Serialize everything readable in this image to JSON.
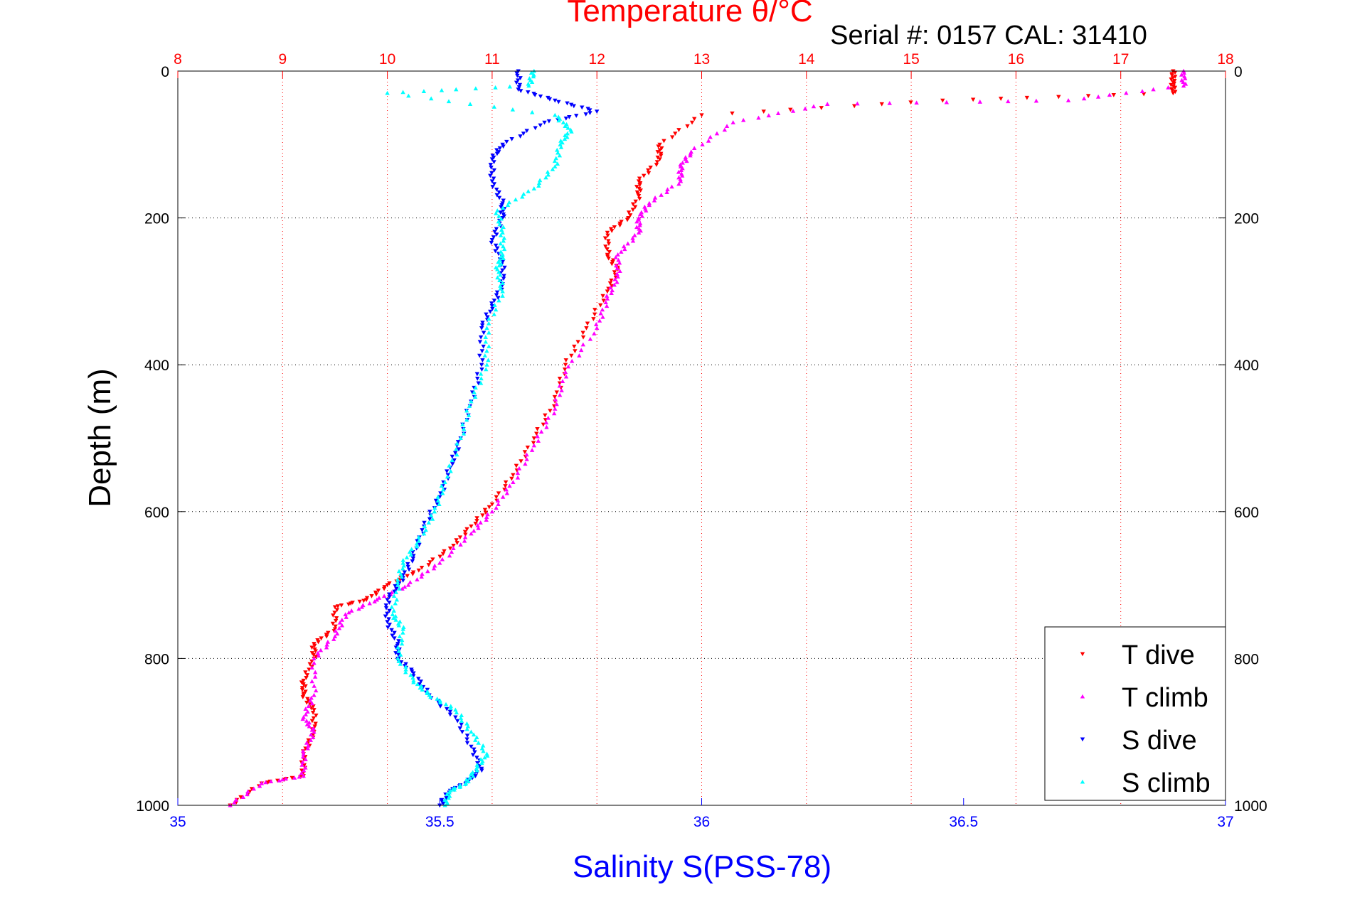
{
  "chart_data": {
    "type": "scatter",
    "title": "Temperature θ/°C",
    "subtitle": "Serial #: 0157  CAL: 31410",
    "xlabel": "Salinity S(PSS-78)",
    "ylabel": "Depth (m)",
    "x_bottom": {
      "lim": [
        35,
        37
      ],
      "ticks": [
        "35",
        "35.5",
        "36",
        "36.5",
        "37"
      ],
      "tick_values": [
        35,
        35.5,
        36,
        36.5,
        37
      ],
      "color": "#0000ff"
    },
    "x_top": {
      "lim": [
        8,
        18
      ],
      "ticks": [
        "8",
        "9",
        "10",
        "11",
        "12",
        "13",
        "14",
        "15",
        "16",
        "17",
        "18"
      ],
      "tick_values": [
        8,
        9,
        10,
        11,
        12,
        13,
        14,
        15,
        16,
        17,
        18
      ],
      "color": "#ff0000"
    },
    "y": {
      "lim": [
        0,
        1000
      ],
      "reversed": true,
      "ticks": [
        "0",
        "200",
        "400",
        "600",
        "800",
        "1000"
      ],
      "tick_values": [
        0,
        200,
        400,
        600,
        800,
        1000
      ]
    },
    "grid": true,
    "legend_position": "bottom-right",
    "series": [
      {
        "name": "T dive",
        "axis": "top",
        "color": "#ff0000",
        "marker": "down-triangle",
        "points": [
          [
            17.5,
            0
          ],
          [
            17.5,
            15
          ],
          [
            17.5,
            30
          ],
          [
            15.3,
            40
          ],
          [
            13.0,
            60
          ],
          [
            12.6,
            100
          ],
          [
            12.6,
            120
          ],
          [
            12.4,
            150
          ],
          [
            12.4,
            170
          ],
          [
            12.3,
            200
          ],
          [
            12.1,
            220
          ],
          [
            12.1,
            250
          ],
          [
            12.2,
            270
          ],
          [
            12.1,
            300
          ],
          [
            11.9,
            350
          ],
          [
            11.7,
            400
          ],
          [
            11.6,
            450
          ],
          [
            11.4,
            500
          ],
          [
            11.2,
            550
          ],
          [
            11.0,
            590
          ],
          [
            10.8,
            620
          ],
          [
            10.6,
            650
          ],
          [
            10.3,
            680
          ],
          [
            10.0,
            700
          ],
          [
            9.8,
            720
          ],
          [
            9.5,
            730
          ],
          [
            9.5,
            760
          ],
          [
            9.3,
            780
          ],
          [
            9.3,
            800
          ],
          [
            9.2,
            830
          ],
          [
            9.2,
            850
          ],
          [
            9.3,
            870
          ],
          [
            9.3,
            900
          ],
          [
            9.2,
            930
          ],
          [
            9.2,
            960
          ],
          [
            8.8,
            970
          ],
          [
            8.5,
            1000
          ]
        ]
      },
      {
        "name": "T climb",
        "axis": "top",
        "color": "#ff00ff",
        "marker": "up-triangle",
        "points": [
          [
            17.6,
            0
          ],
          [
            17.6,
            20
          ],
          [
            16.5,
            40
          ],
          [
            14.2,
            45
          ],
          [
            13.3,
            70
          ],
          [
            12.9,
            110
          ],
          [
            12.8,
            130
          ],
          [
            12.8,
            150
          ],
          [
            12.5,
            180
          ],
          [
            12.4,
            200
          ],
          [
            12.4,
            220
          ],
          [
            12.2,
            250
          ],
          [
            12.2,
            280
          ],
          [
            12.1,
            310
          ],
          [
            12.0,
            350
          ],
          [
            11.7,
            410
          ],
          [
            11.6,
            460
          ],
          [
            11.4,
            510
          ],
          [
            11.2,
            560
          ],
          [
            11.0,
            600
          ],
          [
            10.8,
            630
          ],
          [
            10.5,
            670
          ],
          [
            10.2,
            700
          ],
          [
            9.9,
            720
          ],
          [
            9.6,
            740
          ],
          [
            9.5,
            770
          ],
          [
            9.3,
            800
          ],
          [
            9.3,
            850
          ],
          [
            9.2,
            880
          ],
          [
            9.3,
            900
          ],
          [
            9.2,
            930
          ],
          [
            9.2,
            960
          ],
          [
            8.8,
            970
          ],
          [
            8.5,
            1000
          ]
        ]
      },
      {
        "name": "S dive",
        "axis": "bottom",
        "color": "#0000ff",
        "marker": "down-triangle",
        "points": [
          [
            35.65,
            0
          ],
          [
            35.65,
            25
          ],
          [
            35.72,
            40
          ],
          [
            35.8,
            55
          ],
          [
            35.7,
            70
          ],
          [
            35.62,
            100
          ],
          [
            35.6,
            120
          ],
          [
            35.6,
            150
          ],
          [
            35.62,
            180
          ],
          [
            35.62,
            200
          ],
          [
            35.6,
            230
          ],
          [
            35.62,
            260
          ],
          [
            35.62,
            290
          ],
          [
            35.6,
            320
          ],
          [
            35.58,
            350
          ],
          [
            35.58,
            400
          ],
          [
            35.56,
            450
          ],
          [
            35.54,
            500
          ],
          [
            35.52,
            540
          ],
          [
            35.5,
            580
          ],
          [
            35.47,
            620
          ],
          [
            35.45,
            660
          ],
          [
            35.43,
            690
          ],
          [
            35.4,
            720
          ],
          [
            35.4,
            750
          ],
          [
            35.42,
            780
          ],
          [
            35.42,
            800
          ],
          [
            35.45,
            820
          ],
          [
            35.48,
            850
          ],
          [
            35.53,
            880
          ],
          [
            35.56,
            920
          ],
          [
            35.58,
            950
          ],
          [
            35.55,
            970
          ],
          [
            35.52,
            980
          ],
          [
            35.5,
            1000
          ]
        ]
      },
      {
        "name": "S climb",
        "axis": "bottom",
        "color": "#00ffff",
        "marker": "up-triangle",
        "points": [
          [
            35.68,
            0
          ],
          [
            35.67,
            20
          ],
          [
            35.4,
            30
          ],
          [
            35.72,
            60
          ],
          [
            35.75,
            80
          ],
          [
            35.73,
            100
          ],
          [
            35.72,
            130
          ],
          [
            35.68,
            160
          ],
          [
            35.61,
            190
          ],
          [
            35.62,
            220
          ],
          [
            35.62,
            250
          ],
          [
            35.61,
            270
          ],
          [
            35.62,
            300
          ],
          [
            35.59,
            350
          ],
          [
            35.59,
            400
          ],
          [
            35.56,
            450
          ],
          [
            35.54,
            500
          ],
          [
            35.51,
            560
          ],
          [
            35.49,
            600
          ],
          [
            35.46,
            640
          ],
          [
            35.43,
            670
          ],
          [
            35.42,
            700
          ],
          [
            35.41,
            740
          ],
          [
            35.43,
            760
          ],
          [
            35.42,
            800
          ],
          [
            35.45,
            830
          ],
          [
            35.48,
            850
          ],
          [
            35.53,
            870
          ],
          [
            35.56,
            900
          ],
          [
            35.59,
            930
          ],
          [
            35.57,
            950
          ],
          [
            35.55,
            970
          ],
          [
            35.52,
            980
          ],
          [
            35.51,
            1000
          ]
        ]
      }
    ]
  }
}
